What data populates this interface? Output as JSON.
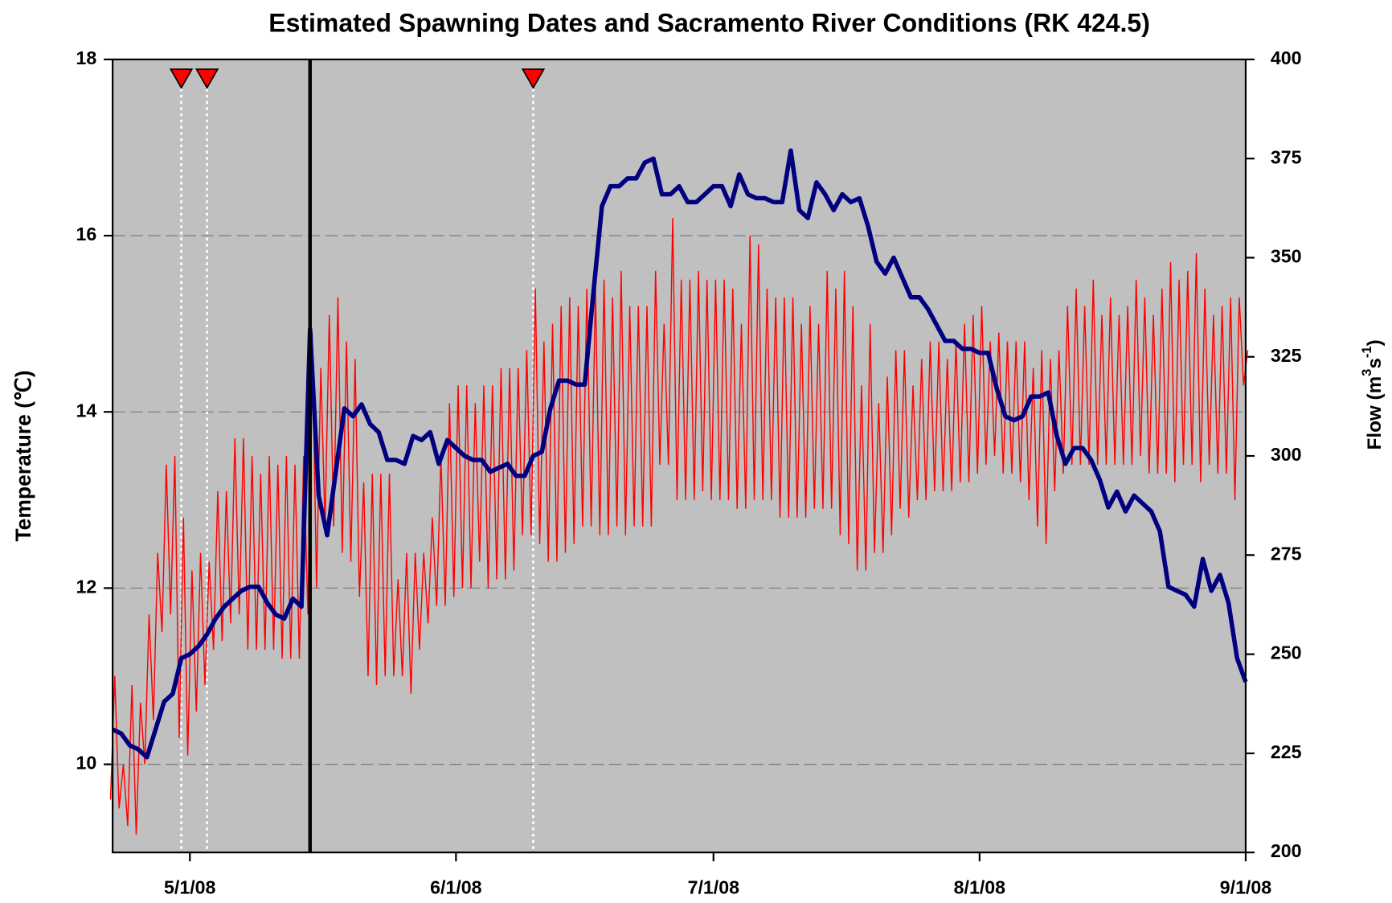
{
  "chart_data": {
    "type": "line",
    "title": "Estimated Spawning Dates and Sacramento River Conditions (RK 424.5)",
    "y_label": "Temperature (℃)",
    "y2_label_parts": [
      {
        "text": "Flow (m"
      },
      {
        "text": "3",
        "sup": true
      },
      {
        "text": "s"
      },
      {
        "text": "-1",
        "sup": true
      },
      {
        "text": ")"
      }
    ],
    "xlim": [
      "4/22/08",
      "9/1/08"
    ],
    "xticks": [
      "5/1/08",
      "6/1/08",
      "7/1/08",
      "8/1/08",
      "9/1/08"
    ],
    "ylim": [
      9,
      18
    ],
    "yticks": [
      10,
      12,
      14,
      16,
      18
    ],
    "y2lim": [
      200,
      400
    ],
    "y2ticks": [
      200,
      225,
      250,
      275,
      300,
      325,
      350,
      375,
      400
    ],
    "grid": true,
    "background": "#c0c0c0",
    "x": [
      "4/22/08",
      "4/23/08",
      "4/24/08",
      "4/25/08",
      "4/26/08",
      "4/27/08",
      "4/28/08",
      "4/29/08",
      "4/30/08",
      "5/1/08",
      "5/2/08",
      "5/3/08",
      "5/4/08",
      "5/5/08",
      "5/6/08",
      "5/7/08",
      "5/8/08",
      "5/9/08",
      "5/10/08",
      "5/11/08",
      "5/12/08",
      "5/13/08",
      "5/14/08",
      "5/15/08",
      "5/16/08",
      "5/17/08",
      "5/18/08",
      "5/19/08",
      "5/20/08",
      "5/21/08",
      "5/22/08",
      "5/23/08",
      "5/24/08",
      "5/25/08",
      "5/26/08",
      "5/27/08",
      "5/28/08",
      "5/29/08",
      "5/30/08",
      "5/31/08",
      "6/1/08",
      "6/2/08",
      "6/3/08",
      "6/4/08",
      "6/5/08",
      "6/6/08",
      "6/7/08",
      "6/8/08",
      "6/9/08",
      "6/10/08",
      "6/11/08",
      "6/12/08",
      "6/13/08",
      "6/14/08",
      "6/15/08",
      "6/16/08",
      "6/17/08",
      "6/18/08",
      "6/19/08",
      "6/20/08",
      "6/21/08",
      "6/22/08",
      "6/23/08",
      "6/24/08",
      "6/25/08",
      "6/26/08",
      "6/27/08",
      "6/28/08",
      "6/29/08",
      "6/30/08",
      "7/1/08",
      "7/2/08",
      "7/3/08",
      "7/4/08",
      "7/5/08",
      "7/6/08",
      "7/7/08",
      "7/8/08",
      "7/9/08",
      "7/10/08",
      "7/11/08",
      "7/12/08",
      "7/13/08",
      "7/14/08",
      "7/15/08",
      "7/16/08",
      "7/17/08",
      "7/18/08",
      "7/19/08",
      "7/20/08",
      "7/21/08",
      "7/22/08",
      "7/23/08",
      "7/24/08",
      "7/25/08",
      "7/26/08",
      "7/27/08",
      "7/28/08",
      "7/29/08",
      "7/30/08",
      "7/31/08",
      "8/1/08",
      "8/2/08",
      "8/3/08",
      "8/4/08",
      "8/5/08",
      "8/6/08",
      "8/7/08",
      "8/8/08",
      "8/9/08",
      "8/10/08",
      "8/11/08",
      "8/12/08",
      "8/13/08",
      "8/14/08",
      "8/15/08",
      "8/16/08",
      "8/17/08",
      "8/18/08",
      "8/19/08",
      "8/20/08",
      "8/21/08",
      "8/22/08",
      "8/23/08",
      "8/24/08",
      "8/25/08",
      "8/26/08",
      "8/27/08",
      "8/28/08",
      "8/29/08",
      "8/30/08",
      "8/31/08",
      "9/1/08"
    ],
    "series": [
      {
        "name": "Temperature",
        "color": "#ff0000",
        "axis": "y",
        "max": [
          11.0,
          10.0,
          10.9,
          10.7,
          11.7,
          12.4,
          13.4,
          13.5,
          12.8,
          12.2,
          12.4,
          12.3,
          13.1,
          13.1,
          13.7,
          13.7,
          13.5,
          13.3,
          13.5,
          13.4,
          13.5,
          13.4,
          13.5,
          14.9,
          14.5,
          15.1,
          15.3,
          14.8,
          14.6,
          13.2,
          13.3,
          13.3,
          13.3,
          12.1,
          12.4,
          12.4,
          12.4,
          12.8,
          13.5,
          14.1,
          14.3,
          14.3,
          14.1,
          14.3,
          14.3,
          14.5,
          14.5,
          14.5,
          14.7,
          15.4,
          14.8,
          15.0,
          15.2,
          15.3,
          15.2,
          15.4,
          15.4,
          15.5,
          15.3,
          15.6,
          15.2,
          15.2,
          15.2,
          15.6,
          15.0,
          16.2,
          15.5,
          15.5,
          15.6,
          15.5,
          15.5,
          15.5,
          15.4,
          15.0,
          16.0,
          15.9,
          15.4,
          15.3,
          15.3,
          15.3,
          15.0,
          15.2,
          15.0,
          15.6,
          15.4,
          15.6,
          15.2,
          14.3,
          15.0,
          14.1,
          14.4,
          14.7,
          14.7,
          14.3,
          14.6,
          14.8,
          14.8,
          14.6,
          14.8,
          15.0,
          15.1,
          15.2,
          14.8,
          14.9,
          14.8,
          14.8,
          14.8,
          14.5,
          14.7,
          14.6,
          14.7,
          15.2,
          15.4,
          15.2,
          15.5,
          15.1,
          15.3,
          15.1,
          15.2,
          15.5,
          15.3,
          15.1,
          15.4,
          15.7,
          15.5,
          15.6,
          15.8,
          15.4,
          15.1,
          15.2,
          15.3,
          15.3,
          14.7
        ],
        "min": [
          9.6,
          9.5,
          9.3,
          9.2,
          10.0,
          10.5,
          11.5,
          11.7,
          10.3,
          10.1,
          10.6,
          10.9,
          11.3,
          11.4,
          11.6,
          11.7,
          11.3,
          11.3,
          11.3,
          11.3,
          11.2,
          11.2,
          11.2,
          11.7,
          12.0,
          12.7,
          12.7,
          12.4,
          12.3,
          11.9,
          11.0,
          10.9,
          11.0,
          11.0,
          11.0,
          10.8,
          11.3,
          11.6,
          11.8,
          11.8,
          11.9,
          12.0,
          12.0,
          12.3,
          12.0,
          12.1,
          12.1,
          12.2,
          12.6,
          12.6,
          12.5,
          12.3,
          12.3,
          12.4,
          12.5,
          12.7,
          12.7,
          12.6,
          12.6,
          12.7,
          12.6,
          12.7,
          12.7,
          12.7,
          13.4,
          13.4,
          13.0,
          13.0,
          13.0,
          13.1,
          13.0,
          13.0,
          13.0,
          12.9,
          12.9,
          13.0,
          13.0,
          13.0,
          12.8,
          12.8,
          12.8,
          12.8,
          12.9,
          12.9,
          12.9,
          12.6,
          12.5,
          12.2,
          12.2,
          12.4,
          12.4,
          12.6,
          12.9,
          12.8,
          13.0,
          13.0,
          13.1,
          13.1,
          13.1,
          13.2,
          13.2,
          13.3,
          13.4,
          13.5,
          13.3,
          13.3,
          13.2,
          13.0,
          12.7,
          12.5,
          13.1,
          13.3,
          13.4,
          13.4,
          13.4,
          13.4,
          13.4,
          13.4,
          13.4,
          13.4,
          13.5,
          13.3,
          13.3,
          13.3,
          13.2,
          13.4,
          13.4,
          13.2,
          13.4,
          13.3,
          13.3,
          13.0,
          14.3
        ]
      },
      {
        "name": "Flow",
        "color": "#000080",
        "axis": "y2",
        "values": [
          231,
          230,
          227,
          226,
          224,
          231,
          238,
          240,
          249,
          250,
          252,
          255,
          259,
          262,
          264,
          266,
          267,
          267,
          263,
          260,
          259,
          264,
          262,
          332,
          290,
          280,
          296,
          312,
          310,
          313,
          308,
          306,
          299,
          299,
          298,
          305,
          304,
          306,
          298,
          304,
          302,
          300,
          299,
          299,
          296,
          297,
          298,
          295,
          295,
          300,
          301,
          312,
          319,
          319,
          318,
          318,
          341,
          363,
          368,
          368,
          370,
          370,
          374,
          375,
          366,
          366,
          368,
          364,
          364,
          366,
          368,
          368,
          363,
          371,
          366,
          365,
          365,
          364,
          364,
          377,
          362,
          360,
          369,
          366,
          362,
          366,
          364,
          365,
          358,
          349,
          346,
          350,
          345,
          340,
          340,
          337,
          333,
          329,
          329,
          327,
          327,
          326,
          326,
          317,
          310,
          309,
          310,
          315,
          315,
          316,
          305,
          298,
          302,
          302,
          299,
          294,
          287,
          291,
          286,
          290,
          288,
          286,
          281,
          267,
          266,
          265,
          262,
          274,
          266,
          270,
          263,
          249,
          243
        ]
      }
    ],
    "spawning_dates": [
      "4/30/08",
      "5/3/08",
      "6/10/08"
    ],
    "reference_line": "5/15/08"
  }
}
